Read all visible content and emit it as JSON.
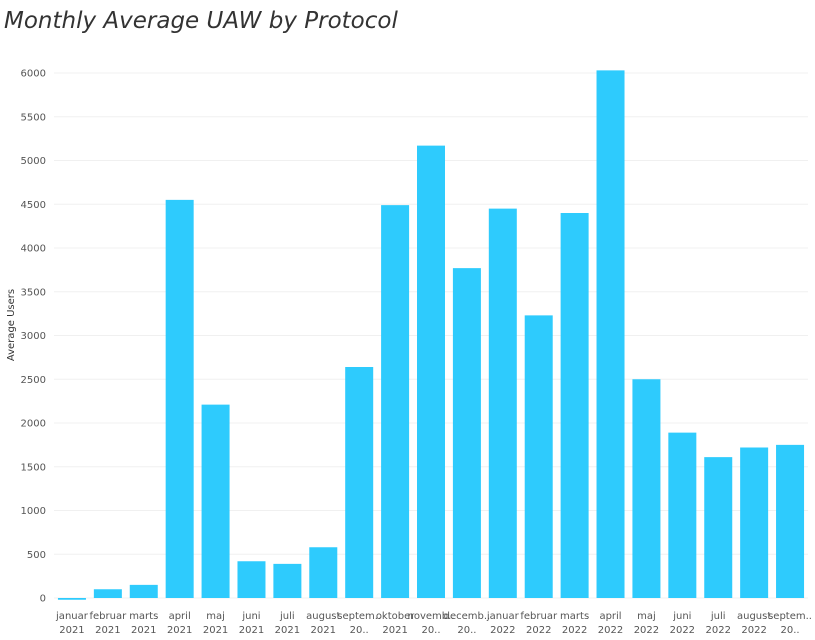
{
  "chart_data": {
    "type": "bar",
    "title": "Monthly Average UAW by Protocol",
    "ylabel": "Average Users",
    "ylim": [
      -50,
      6100
    ],
    "yticks": [
      0,
      500,
      1000,
      1500,
      2000,
      2500,
      3000,
      3500,
      4000,
      4500,
      5000,
      5500,
      6000
    ],
    "grid": true,
    "color": "#2ecbfd",
    "categories": [
      {
        "month": "januar",
        "year": "2021"
      },
      {
        "month": "februar",
        "year": "2021"
      },
      {
        "month": "marts",
        "year": "2021"
      },
      {
        "month": "april",
        "year": "2021"
      },
      {
        "month": "maj",
        "year": "2021"
      },
      {
        "month": "juni",
        "year": "2021"
      },
      {
        "month": "juli",
        "year": "2021"
      },
      {
        "month": "august",
        "year": "2021"
      },
      {
        "month": "septem..",
        "year": "20.."
      },
      {
        "month": "oktober",
        "year": "2021"
      },
      {
        "month": "novemb..",
        "year": "20.."
      },
      {
        "month": "decemb..",
        "year": "20.."
      },
      {
        "month": "januar",
        "year": "2022"
      },
      {
        "month": "februar",
        "year": "2022"
      },
      {
        "month": "marts",
        "year": "2022"
      },
      {
        "month": "april",
        "year": "2022"
      },
      {
        "month": "maj",
        "year": "2022"
      },
      {
        "month": "juni",
        "year": "2022"
      },
      {
        "month": "juli",
        "year": "2022"
      },
      {
        "month": "august",
        "year": "2022"
      },
      {
        "month": "septem..",
        "year": "20.."
      }
    ],
    "values": [
      -20,
      100,
      150,
      4550,
      2210,
      420,
      390,
      580,
      2640,
      4490,
      5170,
      3770,
      4450,
      3230,
      4400,
      6030,
      2500,
      1890,
      1610,
      1720,
      1750
    ]
  }
}
